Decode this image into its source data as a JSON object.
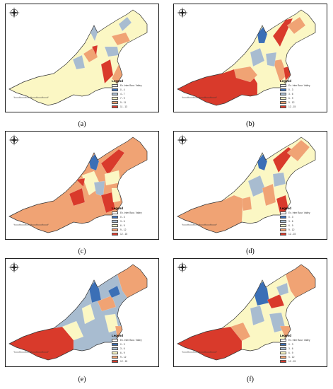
{
  "figure": {
    "panels": [
      {
        "id": "a",
        "caption": "(a)",
        "legend_title": "Legend",
        "legend": [
          {
            "label": "Ex. Inter Bour. Valley",
            "color": "#ffffff"
          },
          {
            "label": "0 - 4",
            "color": "#3b6fb6"
          },
          {
            "label": "4 - 7",
            "color": "#a8bcd0"
          },
          {
            "label": "7 - 9",
            "color": "#fbf7c4"
          },
          {
            "label": "9 - 11",
            "color": "#f0a374"
          },
          {
            "label": "11 - 13",
            "color": "#d93a2b"
          }
        ]
      },
      {
        "id": "b",
        "caption": "(b)",
        "legend_title": "Legend",
        "legend": [
          {
            "label": "Ex. Inter Bour. Valley",
            "color": "#ffffff"
          },
          {
            "label": "0 - 3",
            "color": "#3b6fb6"
          },
          {
            "label": "3 - 6",
            "color": "#a8bcd0"
          },
          {
            "label": "6 - 9",
            "color": "#fbf7c4"
          },
          {
            "label": "9 - 12",
            "color": "#f0a374"
          },
          {
            "label": "12 - 15",
            "color": "#d93a2b"
          }
        ]
      },
      {
        "id": "c",
        "caption": "(c)",
        "legend_title": "Legend",
        "legend": [
          {
            "label": "Ex. Inter Bour. Valley",
            "color": "#ffffff"
          },
          {
            "label": "0 - 3",
            "color": "#3b6fb6"
          },
          {
            "label": "3 - 6",
            "color": "#a8bcd0"
          },
          {
            "label": "6 - 9",
            "color": "#fbf7c4"
          },
          {
            "label": "9 - 12",
            "color": "#f0a374"
          },
          {
            "label": "12 - 15",
            "color": "#d93a2b"
          }
        ]
      },
      {
        "id": "d",
        "caption": "(d)",
        "legend_title": "Legend",
        "legend": [
          {
            "label": "Ex. Inter Bour. Valley",
            "color": "#ffffff"
          },
          {
            "label": "0 - 3",
            "color": "#3b6fb6"
          },
          {
            "label": "3 - 6",
            "color": "#a8bcd0"
          },
          {
            "label": "6 - 9",
            "color": "#fbf7c4"
          },
          {
            "label": "9 - 12",
            "color": "#f0a374"
          },
          {
            "label": "12 - 15",
            "color": "#d93a2b"
          }
        ]
      },
      {
        "id": "e",
        "caption": "(e)",
        "legend_title": "Legend",
        "legend": [
          {
            "label": "Ex. Inter Bour. Valley",
            "color": "#ffffff"
          },
          {
            "label": "0 - 3",
            "color": "#3b6fb6"
          },
          {
            "label": "3 - 6",
            "color": "#a8bcd0"
          },
          {
            "label": "6 - 9",
            "color": "#fbf7c4"
          },
          {
            "label": "9 - 12",
            "color": "#f0a374"
          },
          {
            "label": "12 - 15",
            "color": "#d93a2b"
          }
        ]
      },
      {
        "id": "f",
        "caption": "(f)",
        "legend_title": "Legend",
        "legend": [
          {
            "label": "Ex. Inter Bour. Valley",
            "color": "#ffffff"
          },
          {
            "label": "0 - 3",
            "color": "#3b6fb6"
          },
          {
            "label": "3 - 6",
            "color": "#a8bcd0"
          },
          {
            "label": "6 - 9",
            "color": "#fbf7c4"
          },
          {
            "label": "9 - 12",
            "color": "#f0a374"
          },
          {
            "label": "12 - 15",
            "color": "#d93a2b"
          }
        ]
      }
    ],
    "palette": {
      "blue": "#3b6fb6",
      "gray_blue": "#a8bcd0",
      "yellow": "#fbf7c4",
      "orange": "#f0a374",
      "red": "#d93a2b",
      "outline": "#333333"
    },
    "compass_icon": "north-arrow-icon",
    "scalebar_icon": "scale-bar-icon"
  }
}
